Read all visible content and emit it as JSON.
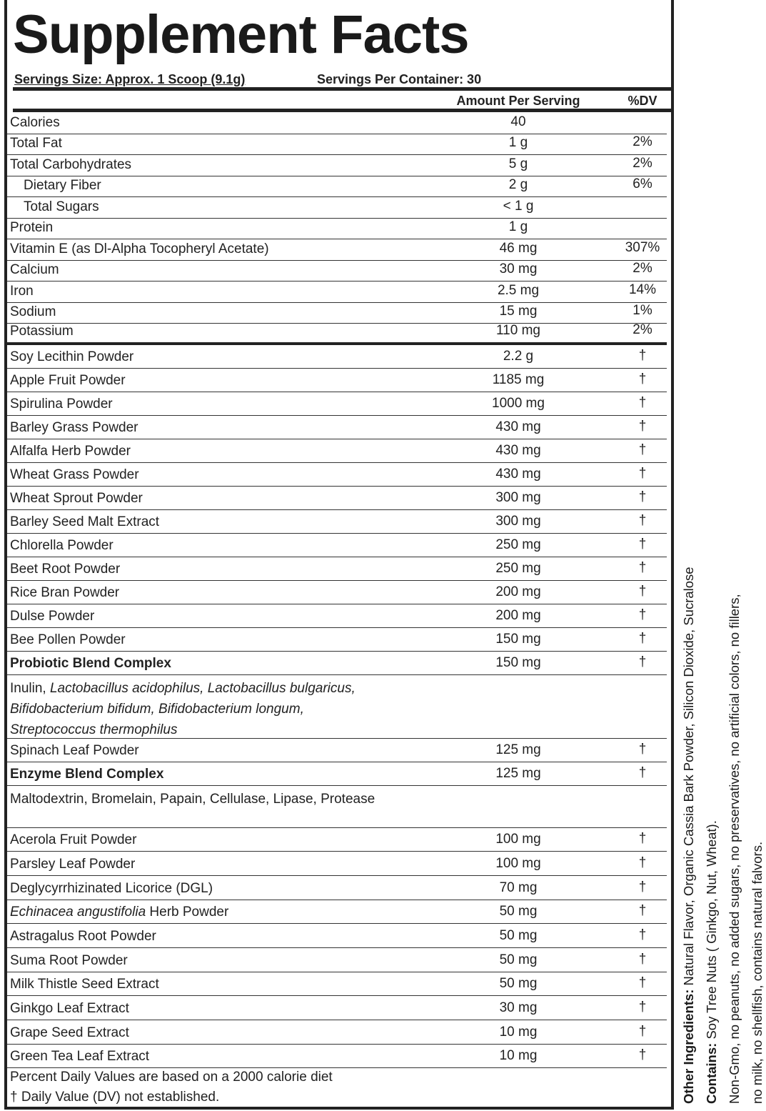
{
  "title": "Supplement Facts",
  "serving_size": "Servings Size: Approx. 1 Scoop (9.1g)",
  "servings_per_container": "Servings Per Container: 30",
  "headers": {
    "amount": "Amount Per Serving",
    "dv": "%DV"
  },
  "rows": [
    {
      "name": "Calories",
      "amount": "40"
    },
    {
      "name": "Total Fat",
      "amount": "1 g",
      "dv": "2%"
    },
    {
      "name": "Total Carbohydrates",
      "amount": "5 g",
      "dv": "2%"
    },
    {
      "name": "Dietary Fiber",
      "amount": "2 g",
      "dv": "6%",
      "indent": true
    },
    {
      "name": "Total Sugars",
      "amount": "< 1 g",
      "indent": true
    },
    {
      "name": "Protein",
      "amount": "1 g"
    },
    {
      "name": "Vitamin E (as Dl-Alpha Tocopheryl Acetate)",
      "amount": "46 mg",
      "dv": "307%"
    },
    {
      "name": "Calcium",
      "amount": "30 mg",
      "dv": "2%"
    },
    {
      "name": "Iron",
      "amount": "2.5 mg",
      "dv": "14%"
    },
    {
      "name": "Sodium",
      "amount": "15 mg",
      "dv": "1%"
    },
    {
      "name": "Potassium",
      "amount": "110 mg",
      "dv": "2%",
      "thick_rule": true
    },
    {
      "name": "Soy Lecithin Powder",
      "amount": "2.2 g",
      "dv": "†"
    },
    {
      "name": "Apple Fruit Powder",
      "amount": "1185 mg",
      "dv": "†"
    },
    {
      "name": "Spirulina Powder",
      "amount": "1000 mg",
      "dv": "†"
    },
    {
      "name": "Barley Grass Powder",
      "amount": "430 mg",
      "dv": "†"
    },
    {
      "name": "Alfalfa Herb Powder",
      "amount": "430 mg",
      "dv": "†"
    },
    {
      "name": "Wheat Grass Powder",
      "amount": "430 mg",
      "dv": "†"
    },
    {
      "name": "Wheat Sprout Powder",
      "amount": "300 mg",
      "dv": "†"
    },
    {
      "name": "Barley Seed Malt Extract",
      "amount": "300 mg",
      "dv": "†"
    },
    {
      "name": "Chlorella Powder",
      "amount": "250 mg",
      "dv": "†"
    },
    {
      "name": "Beet Root Powder",
      "amount": "250 mg",
      "dv": "†"
    },
    {
      "name": "Rice Bran Powder",
      "amount": "200 mg",
      "dv": "†"
    },
    {
      "name": "Dulse Powder",
      "amount": "200 mg",
      "dv": "†"
    },
    {
      "name": "Bee Pollen Powder",
      "amount": "150 mg",
      "dv": "†"
    },
    {
      "name": "Probiotic Blend Complex",
      "amount": "150 mg",
      "dv": "†",
      "bold": true
    },
    {
      "parts": [
        {
          "text": "Inulin,"
        },
        {
          "text": "Lactobacillus acidophilus, Lactobacillus bulgaricus,",
          "italic": true
        },
        {
          "text": "Bifidobacterium bifidum, Bifidobacterium longum,",
          "italic": true,
          "break": true
        },
        {
          "text": "Streptococcus thermophilus",
          "italic": true,
          "break": true
        }
      ]
    },
    {
      "name": "Spinach Leaf Powder",
      "amount": "125 mg",
      "dv": "†"
    },
    {
      "name": "Enzyme Blend Complex",
      "amount": "125 mg",
      "dv": "†",
      "bold": true
    },
    {
      "parts": [
        {
          "text": "Maltodextrin, Bromelain, Papain, Cellulase, Lipase, Protease"
        }
      ]
    },
    {
      "name": "Acerola Fruit Powder",
      "amount": "100 mg",
      "dv": "†"
    },
    {
      "name": "Parsley Leaf Powder",
      "amount": "100 mg",
      "dv": "†"
    },
    {
      "name": "Deglycyrrhizinated Licorice (DGL)",
      "amount": "70 mg",
      "dv": "†"
    },
    {
      "italic_prefix": "Echinacea angustifolia",
      "name": "Herb Powder",
      "amount": "50 mg",
      "dv": "†"
    },
    {
      "name": "Astragalus Root Powder",
      "amount": "50 mg",
      "dv": "†"
    },
    {
      "name": "Suma Root Powder",
      "amount": "50 mg",
      "dv": "†"
    },
    {
      "name": "Milk Thistle Seed Extract",
      "amount": "50 mg",
      "dv": "†"
    },
    {
      "name": "Ginkgo Leaf Extract",
      "amount": "30 mg",
      "dv": "†"
    },
    {
      "name": "Grape Seed Extract",
      "amount": "10 mg",
      "dv": "†"
    },
    {
      "name": "Green Tea Leaf Extract",
      "amount": "10 mg",
      "dv": "†"
    }
  ],
  "footnotes": [
    "Percent Daily Values are based on a 2000 calorie diet",
    "† Daily Value (DV) not established."
  ],
  "side": {
    "other_label": "Other Ingredients:",
    "other_text": "Natural Flavor, Organic Cassia Bark Powder, Silicon Dioxide, Sucralose",
    "contains_label": "Contains:",
    "contains_text": "Soy Tree Nuts ( Ginkgo, Nut, Wheat).",
    "notes": [
      "Non-Gmo, no peanuts, no added sugars, no preservatives, no artificial colors, no fillers,",
      "no milk, no shellfish, contains natural falvors."
    ]
  }
}
